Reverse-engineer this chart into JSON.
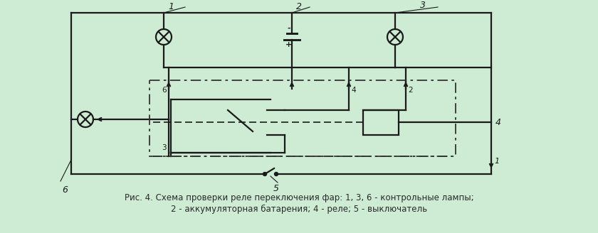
{
  "background_color": "#ceebd4",
  "fig_width": 8.4,
  "fig_height": 3.28,
  "dpi": 100,
  "caption_line1": "Рис. 4. Схема проверки реле переключения фар: 1, 3, 6 - контрольные лампы;",
  "caption_line2": "2 - аккумуляторная батарения; 4 - реле; 5 - выключатель",
  "caption_fontsize": 8.5
}
